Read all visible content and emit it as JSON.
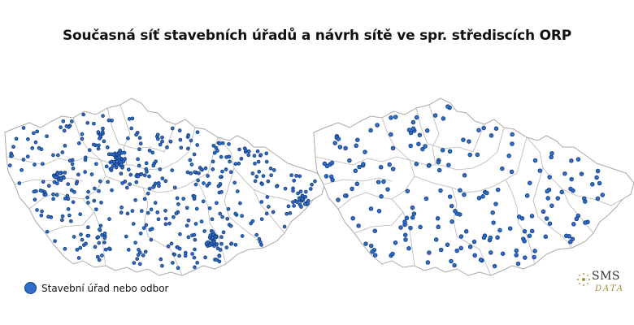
{
  "title": "Současná síť stavebních úřadů a návrh sítě ve spr. střediscích ORP",
  "legend": {
    "label": "Stavební úřad nebo odbor",
    "color": "#2f6fc9"
  },
  "logo": {
    "name": "SMS",
    "sub": "DATA"
  },
  "maps": [
    {
      "id": "current",
      "description_key": "current-network"
    },
    {
      "id": "proposed",
      "description_key": "proposed-network"
    }
  ]
}
